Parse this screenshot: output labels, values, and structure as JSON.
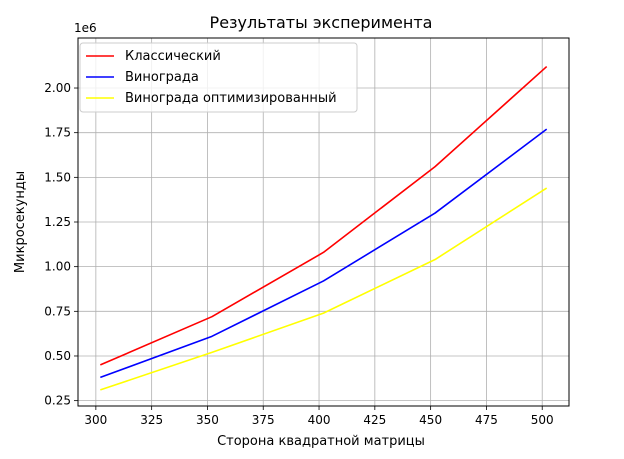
{
  "chart_data": {
    "type": "line",
    "title": "Результаты эксперимента",
    "xlabel": "Сторона квадратной матрицы",
    "ylabel": "Микросекунды",
    "y_offset_label": "1e6",
    "y_scale": 1000000,
    "xlim": [
      292,
      512
    ],
    "ylim": [
      0.22,
      2.28
    ],
    "x_ticks": [
      300,
      325,
      350,
      375,
      400,
      425,
      450,
      475,
      500
    ],
    "y_ticks": [
      0.25,
      0.5,
      0.75,
      1.0,
      1.25,
      1.5,
      1.75,
      2.0
    ],
    "y_tick_labels": [
      "0.25",
      "0.50",
      "0.75",
      "1.00",
      "1.25",
      "1.50",
      "1.75",
      "2.00"
    ],
    "grid": true,
    "legend_position": "top-left",
    "x": [
      302,
      352,
      402,
      452,
      502
    ],
    "series": [
      {
        "name": "Классический",
        "color": "#ff0000",
        "values": [
          0.45,
          0.72,
          1.08,
          1.56,
          2.12
        ]
      },
      {
        "name": "Винограда",
        "color": "#0000ff",
        "values": [
          0.38,
          0.61,
          0.92,
          1.3,
          1.77
        ]
      },
      {
        "name": "Винограда оптимизированный",
        "color": "#ffff00",
        "values": [
          0.31,
          0.52,
          0.74,
          1.04,
          1.44
        ]
      }
    ]
  }
}
